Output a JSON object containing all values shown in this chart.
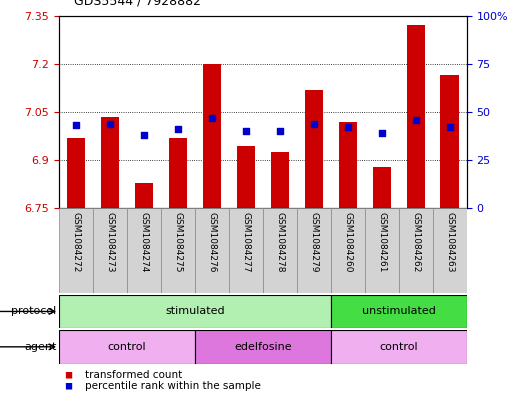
{
  "title": "GDS5544 / 7928882",
  "samples": [
    "GSM1084272",
    "GSM1084273",
    "GSM1084274",
    "GSM1084275",
    "GSM1084276",
    "GSM1084277",
    "GSM1084278",
    "GSM1084279",
    "GSM1084260",
    "GSM1084261",
    "GSM1084262",
    "GSM1084263"
  ],
  "red_values": [
    6.97,
    7.035,
    6.83,
    6.97,
    7.2,
    6.945,
    6.925,
    7.12,
    7.02,
    6.88,
    7.32,
    7.165
  ],
  "blue_values_pct": [
    43,
    44,
    38,
    41,
    47,
    40,
    40,
    44,
    42,
    39,
    46,
    42
  ],
  "ymin": 6.75,
  "ymax": 7.35,
  "yticks": [
    6.75,
    6.9,
    7.05,
    7.2,
    7.35
  ],
  "ytick_labels": [
    "6.75",
    "6.9",
    "7.05",
    "7.2",
    "7.35"
  ],
  "right_yticks": [
    0,
    25,
    50,
    75,
    100
  ],
  "right_ytick_labels": [
    "0",
    "25",
    "50",
    "75",
    "100%"
  ],
  "bar_color": "#cc0000",
  "blue_color": "#0000cc",
  "protocol_groups": [
    {
      "label": "stimulated",
      "start": 0,
      "end": 8,
      "color": "#b2f0b2"
    },
    {
      "label": "unstimulated",
      "start": 8,
      "end": 12,
      "color": "#44dd44"
    }
  ],
  "agent_groups": [
    {
      "label": "control",
      "start": 0,
      "end": 4,
      "color": "#f0b0f0"
    },
    {
      "label": "edelfosine",
      "start": 4,
      "end": 8,
      "color": "#dd77dd"
    },
    {
      "label": "control",
      "start": 8,
      "end": 12,
      "color": "#f0b0f0"
    }
  ],
  "legend_items": [
    {
      "label": "transformed count",
      "color": "#cc0000"
    },
    {
      "label": "percentile rank within the sample",
      "color": "#0000cc"
    }
  ],
  "bg_color": "#ffffff",
  "label_area_color": "#d3d3d3",
  "protocol_label": "protocol",
  "agent_label": "agent"
}
